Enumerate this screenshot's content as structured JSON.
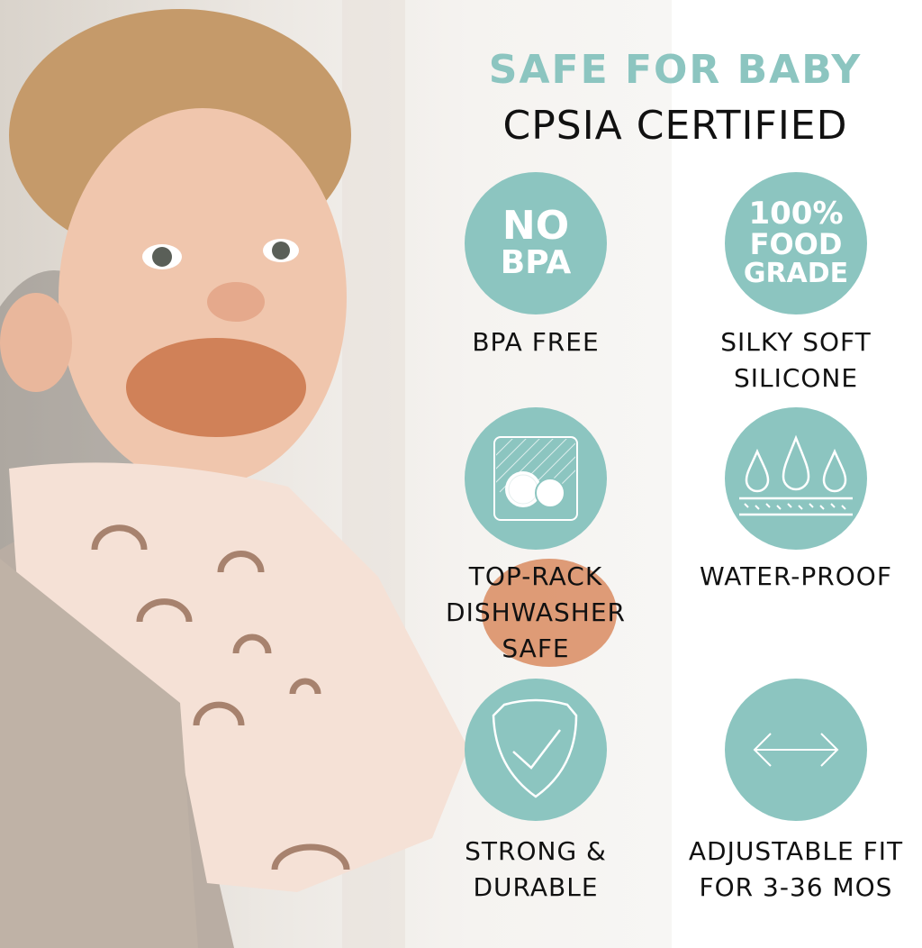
{
  "header": {
    "line1": "SAFE FOR BABY",
    "line2": "CPSIA CERTIFIED"
  },
  "accent_color": "#8cc5c0",
  "features": [
    {
      "icon": "no-bpa-badge",
      "badge": [
        "NO",
        "BPA"
      ],
      "label": [
        "BPA FREE"
      ]
    },
    {
      "icon": "food-grade-badge",
      "badge": [
        "100%",
        "FOOD",
        "GRADE"
      ],
      "label": [
        "SILKY SOFT",
        "SILICONE"
      ]
    },
    {
      "icon": "dishwasher-icon",
      "label": [
        "TOP-RACK",
        "DISHWASHER",
        "SAFE"
      ]
    },
    {
      "icon": "water-drops-icon",
      "label": [
        "WATER-PROOF"
      ]
    },
    {
      "icon": "shield-check-icon",
      "label": [
        "STRONG &",
        "DURABLE"
      ]
    },
    {
      "icon": "double-arrow-icon",
      "label": [
        "ADJUSTABLE FIT",
        "FOR 3-36 MOS"
      ]
    }
  ]
}
